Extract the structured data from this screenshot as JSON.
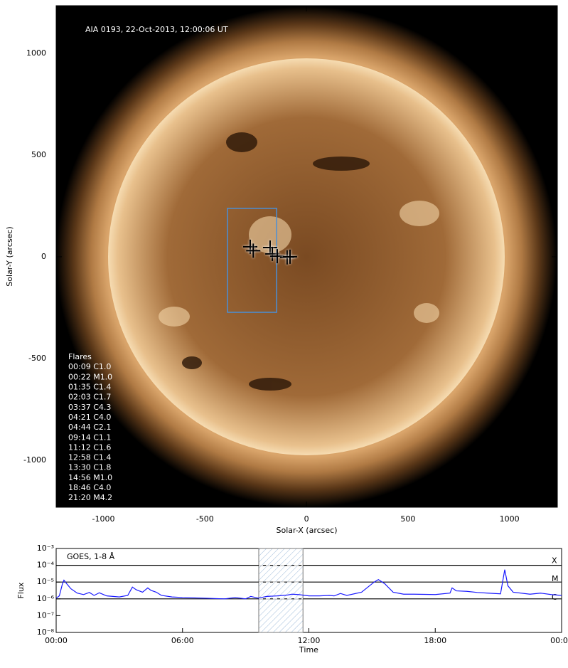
{
  "chart_data": [
    {
      "type": "image",
      "annotation": "AIA 0193, 22-Oct-2013, 12:00:06 UT",
      "xlabel": "Solar-X (arcsec)",
      "ylabel": "Solar-Y (arcsec)",
      "xlim": [
        -1233,
        1236
      ],
      "ylim": [
        -1231,
        1234
      ],
      "xticks": [
        -1000,
        -500,
        0,
        500,
        1000
      ],
      "yticks": [
        -1000,
        -500,
        0,
        500,
        1000
      ],
      "box": {
        "x": [
          -389,
          -147
        ],
        "y": [
          -273,
          238
        ],
        "color": "#4a8fd6"
      },
      "points": {
        "x": [
          -277,
          -262,
          -179,
          -168,
          -144,
          -95,
          -81
        ],
        "y": [
          49,
          30,
          45,
          14,
          3,
          -3,
          0
        ]
      },
      "legend_title": "Flares",
      "legend_entries": [
        "00:09 C1.0",
        "00:22 M1.0",
        "01:35 C1.4",
        "02:03 C1.7",
        "03:37 C4.3",
        "04:21 C4.0",
        "04:44 C2.1",
        "09:14 C1.1",
        "11:12 C1.6",
        "12:58 C1.4",
        "13:30 C1.8",
        "14:56 M1.0",
        "18:46 C4.0",
        "21:20 M4.2"
      ]
    },
    {
      "type": "line",
      "xlabel": "Time",
      "ylabel": "Flux",
      "log_scale": true,
      "xlim": [
        0,
        24
      ],
      "ylim": [
        1e-08,
        0.001
      ],
      "xticks": [
        {
          "value": 0,
          "label": "00:00"
        },
        {
          "value": 6,
          "label": "06:00"
        },
        {
          "value": 12,
          "label": "12:00"
        },
        {
          "value": 18,
          "label": "18:00"
        },
        {
          "value": 24,
          "label": "00:00"
        }
      ],
      "yticks": [
        {
          "value": 1e-08,
          "label": "10⁻⁸"
        },
        {
          "value": 1e-07,
          "label": "10⁻⁷"
        },
        {
          "value": 1e-06,
          "label": "10⁻⁶"
        },
        {
          "value": 1e-05,
          "label": "10⁻⁵"
        },
        {
          "value": 0.0001,
          "label": "10⁻⁴"
        },
        {
          "value": 0.001,
          "label": "10⁻³"
        }
      ],
      "levels": {
        "values": [
          0.0001,
          1e-05,
          1e-06
        ],
        "labels": [
          "X",
          "M",
          "C"
        ]
      },
      "shaded_span": [
        9.62,
        11.72
      ],
      "x": [
        0,
        0.15,
        0.3,
        0.37,
        0.5,
        0.7,
        1.0,
        1.3,
        1.58,
        1.8,
        2.05,
        2.4,
        3.0,
        3.4,
        3.62,
        3.8,
        4.1,
        4.35,
        4.5,
        4.75,
        5.0,
        5.5,
        6.0,
        7.0,
        8.0,
        8.5,
        9.0,
        9.24,
        9.6,
        10.0,
        10.5,
        11.0,
        11.2,
        11.5,
        12.0,
        12.5,
        12.97,
        13.2,
        13.5,
        13.8,
        14.5,
        14.8,
        15.1,
        15.3,
        15.6,
        16.0,
        16.5,
        17.0,
        18.0,
        18.7,
        18.8,
        19.0,
        19.5,
        20.0,
        20.5,
        21.1,
        21.3,
        21.45,
        21.7,
        22.5,
        23.0,
        23.5,
        24.0
      ],
      "series": [
        {
          "name": "GOES, 1-8 Å",
          "color": "#1a1aff",
          "values": [
            1.1e-06,
            1.5e-06,
            8e-06,
            1.3e-05,
            8e-06,
            4e-06,
            2.2e-06,
            1.8e-06,
            2.4e-06,
            1.6e-06,
            2.3e-06,
            1.5e-06,
            1.3e-06,
            1.6e-06,
            5e-06,
            3.5e-06,
            2.5e-06,
            4.5e-06,
            3.2e-06,
            2.5e-06,
            1.6e-06,
            1.3e-06,
            1.2e-06,
            1.1e-06,
            1e-06,
            1.2e-06,
            1e-06,
            1.4e-06,
            1.1e-06,
            1.4e-06,
            1.5e-06,
            1.7e-06,
            1.9e-06,
            1.8e-06,
            1.5e-06,
            1.5e-06,
            1.6e-06,
            1.5e-06,
            2.1e-06,
            1.6e-06,
            2.5e-06,
            5e-06,
            1e-05,
            1.4e-05,
            8e-06,
            2.5e-06,
            1.9e-06,
            1.9e-06,
            1.8e-06,
            2.2e-06,
            4.5e-06,
            3e-06,
            2.8e-06,
            2.4e-06,
            2.2e-06,
            2e-06,
            5.5e-05,
            6e-06,
            2.5e-06,
            1.9e-06,
            2.2e-06,
            1.8e-06,
            1.6e-06
          ]
        }
      ]
    }
  ]
}
